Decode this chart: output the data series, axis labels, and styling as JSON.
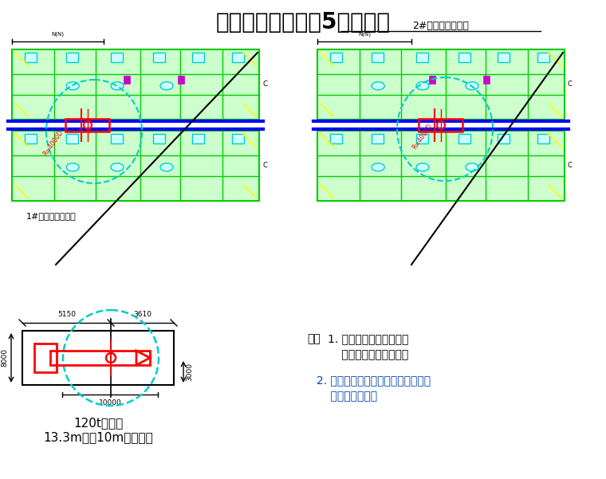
{
  "title": "吊装平面图（锌锅5片供货）",
  "title_fontsize": 20,
  "bg_color": "#ffffff",
  "label_1": "1#热镀锌机组锌锅",
  "label_2": "2#热镀锌机组锌锅",
  "label_crane": "120t汽车吊",
  "label_crane2": "13.3m杆，10m作业半径",
  "note1_prefix": "注：",
  "note1a": "1. 出车行走道路需回填、",
  "note1b": "    夯实、面层施工完成；",
  "note2a": "2. 吊车走行路线上，无地下室孔洞，",
  "note2b": "    全为实心基础。",
  "dim_5150": "5150",
  "dim_3610": "3610",
  "dim_8000": "8000",
  "dim_10000": "10000",
  "dim_3000": "3000",
  "green_main": "#00cc00",
  "green_fill": "#ccffcc",
  "cyan_color": "#00cccc",
  "cyan_fill": "#ccffff",
  "red_color": "#ff0000",
  "blue_color": "#0000ff",
  "yellow_color": "#ffff00",
  "magenta_color": "#cc00cc",
  "black_color": "#000000",
  "note2_color": "#0044aa"
}
